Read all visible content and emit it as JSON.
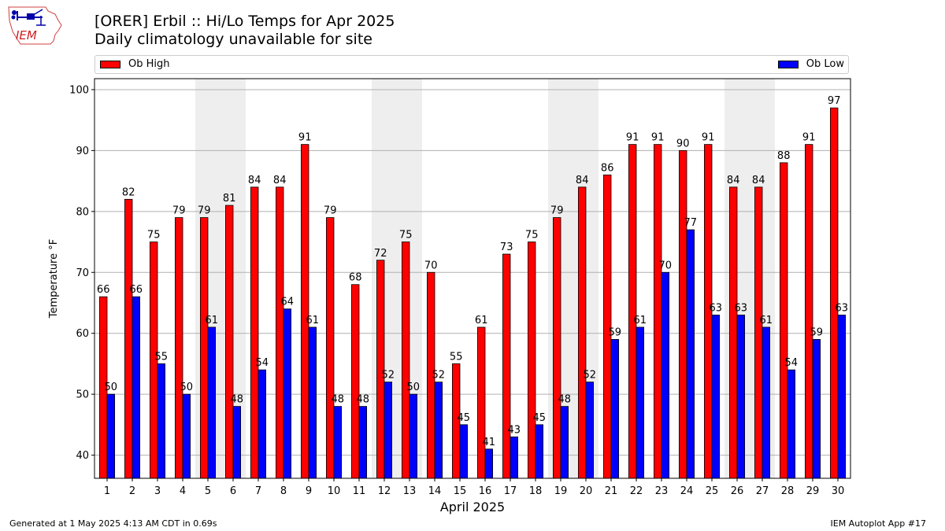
{
  "title_line1": "[ORER] Erbil :: Hi/Lo Temps for Apr 2025",
  "title_line2": "Daily climatology unavailable for site",
  "logo_text": "IEM",
  "footer_left": "Generated at 1 May 2025 4:13 AM CDT in 0.69s",
  "footer_right": "IEM Autoplot App #17",
  "colors": {
    "high": "#ff0000",
    "low": "#0000ff",
    "weekend_band": "#eeeeee",
    "grid": "#b0b0b0"
  },
  "chart_data": {
    "type": "bar",
    "xlabel": "April 2025",
    "ylabel": "Temperature °F",
    "ylim": [
      36.2,
      101.8
    ],
    "yticks": [
      40,
      50,
      60,
      70,
      80,
      90,
      100
    ],
    "grid": "horizontal",
    "legend": "top",
    "categories": [
      "1",
      "2",
      "3",
      "4",
      "5",
      "6",
      "7",
      "8",
      "9",
      "10",
      "11",
      "12",
      "13",
      "14",
      "15",
      "16",
      "17",
      "18",
      "19",
      "20",
      "21",
      "22",
      "23",
      "24",
      "25",
      "26",
      "27",
      "28",
      "29",
      "30"
    ],
    "shaded_days": [
      5,
      6,
      12,
      13,
      19,
      20,
      26,
      27
    ],
    "series": [
      {
        "name": "Ob High",
        "color": "#ff0000",
        "values": [
          66,
          82,
          75,
          79,
          79,
          81,
          84,
          84,
          91,
          79,
          68,
          72,
          75,
          70,
          55,
          61,
          73,
          75,
          79,
          84,
          86,
          91,
          91,
          90,
          91,
          84,
          84,
          88,
          91,
          97
        ]
      },
      {
        "name": "Ob Low",
        "color": "#0000ff",
        "values": [
          50,
          66,
          55,
          50,
          61,
          48,
          54,
          64,
          61,
          48,
          48,
          52,
          50,
          52,
          45,
          41,
          43,
          45,
          48,
          52,
          59,
          61,
          70,
          77,
          63,
          63,
          61,
          54,
          59,
          63
        ]
      }
    ]
  }
}
